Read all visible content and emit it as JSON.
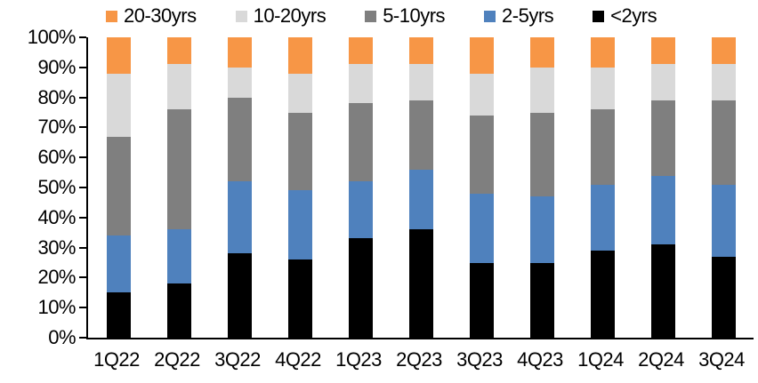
{
  "chart_data": {
    "type": "bar",
    "variant": "stacked-100-percent",
    "title": "",
    "xlabel": "",
    "ylabel": "",
    "ylim": [
      0,
      100
    ],
    "grid": false,
    "legend_position": "top",
    "axis_color": "#000000",
    "y_ticks": [
      "0%",
      "10%",
      "20%",
      "30%",
      "40%",
      "50%",
      "60%",
      "70%",
      "80%",
      "90%",
      "100%"
    ],
    "categories": [
      "1Q22",
      "2Q22",
      "3Q22",
      "4Q22",
      "1Q23",
      "2Q23",
      "3Q23",
      "4Q23",
      "1Q24",
      "2Q24",
      "3Q24"
    ],
    "series": [
      {
        "name": "<2yrs",
        "color": "#000000",
        "values": [
          15,
          18,
          28,
          26,
          33,
          36,
          25,
          25,
          29,
          31,
          27
        ]
      },
      {
        "name": "2-5yrs",
        "color": "#4F81BD",
        "values": [
          19,
          18,
          24,
          23,
          19,
          20,
          23,
          22,
          22,
          23,
          24
        ]
      },
      {
        "name": "5-10yrs",
        "color": "#7F7F7F",
        "values": [
          33,
          40,
          28,
          26,
          26,
          23,
          26,
          28,
          25,
          25,
          28
        ]
      },
      {
        "name": "10-20yrs",
        "color": "#D9D9D9",
        "values": [
          21,
          15,
          10,
          13,
          13,
          12,
          14,
          15,
          14,
          12,
          12
        ]
      },
      {
        "name": "20-30yrs",
        "color": "#F79646",
        "values": [
          12,
          9,
          10,
          12,
          9,
          9,
          12,
          10,
          10,
          9,
          9
        ]
      }
    ],
    "legend_order": [
      "20-30yrs",
      "10-20yrs",
      "5-10yrs",
      "2-5yrs",
      "<2yrs"
    ],
    "stacking_order_bottom_to_top": [
      "<2yrs",
      "2-5yrs",
      "5-10yrs",
      "10-20yrs",
      "20-30yrs"
    ]
  }
}
